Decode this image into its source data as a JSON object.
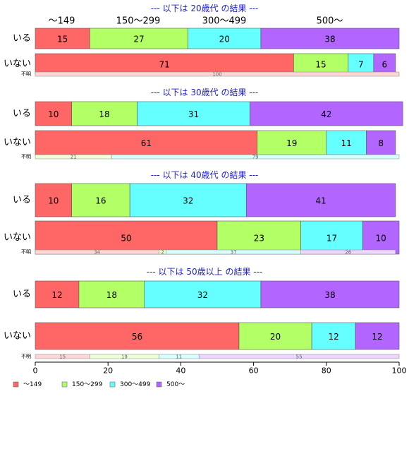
{
  "chart_data": {
    "type": "bar",
    "orientation": "horizontal",
    "stacked": true,
    "xlim": [
      0,
      100
    ],
    "x_ticks": [
      "0",
      "20",
      "40",
      "60",
      "80",
      "100"
    ],
    "category_header": [
      "～149",
      "150～299",
      "300～499",
      "500～"
    ],
    "legend": {
      "placement": "bottom-left",
      "entries": [
        {
          "label": "～149",
          "color": "#ff6666"
        },
        {
          "label": "150～299",
          "color": "#b3ff66"
        },
        {
          "label": "300～499",
          "color": "#66ffff"
        },
        {
          "label": "500～",
          "color": "#b366ff"
        }
      ]
    },
    "colors": [
      "#ff6666",
      "#b3ff66",
      "#66ffff",
      "#b366ff"
    ],
    "light_colors": [
      "#ffd6d6",
      "#ecffd6",
      "#d6ffff",
      "#ecd6ff"
    ],
    "groups": [
      {
        "title": "--- 以下は 20歳代 の結果 ---",
        "rows": [
          {
            "label": "いる",
            "values": [
              15,
              27,
              20,
              38
            ]
          },
          {
            "label": "いない",
            "values": [
              71,
              15,
              7,
              6
            ]
          }
        ],
        "unknown": {
          "label": "不明",
          "values": [
            100,
            0,
            0,
            0
          ]
        }
      },
      {
        "title": "--- 以下は 30歳代 の結果 ---",
        "rows": [
          {
            "label": "いる",
            "values": [
              10,
              18,
              31,
              42
            ]
          },
          {
            "label": "いない",
            "values": [
              61,
              19,
              11,
              8
            ]
          }
        ],
        "unknown": {
          "label": "不明",
          "values": [
            0,
            21,
            79,
            0
          ]
        }
      },
      {
        "title": "--- 以下は 40歳代 の結果 ---",
        "rows": [
          {
            "label": "いる",
            "values": [
              10,
              16,
              32,
              41
            ]
          },
          {
            "label": "いない",
            "values": [
              50,
              23,
              17,
              10
            ]
          }
        ],
        "unknown": {
          "label": "不明",
          "values": [
            34,
            2,
            37,
            26
          ]
        }
      },
      {
        "title": "--- 以下は 50歳以上 の結果 ---",
        "rows": [
          {
            "label": "いる",
            "values": [
              12,
              18,
              32,
              38
            ]
          },
          {
            "label": "いない",
            "values": [
              56,
              20,
              12,
              12
            ]
          }
        ],
        "unknown": {
          "label": "不明",
          "values": [
            15,
            19,
            11,
            55
          ]
        }
      }
    ]
  }
}
